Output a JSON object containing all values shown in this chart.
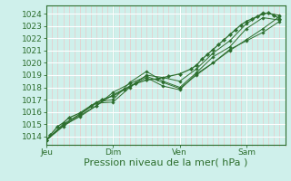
{
  "bg_color": "#cff0eb",
  "plot_bg_color": "#cff0eb",
  "grid_color": "#e8c8c8",
  "line_color": "#2d6e2d",
  "marker_color": "#2d6e2d",
  "axis_color": "#2d6e2d",
  "tick_label_color": "#2d6e2d",
  "xlabel": "Pression niveau de la mer( hPa )",
  "yticks": [
    1014,
    1015,
    1016,
    1017,
    1018,
    1019,
    1020,
    1021,
    1022,
    1023,
    1024
  ],
  "ylim": [
    1013.3,
    1024.7
  ],
  "xtick_labels": [
    "Jeu",
    "Dim",
    "Ven",
    "Sam"
  ],
  "xtick_positions": [
    0,
    72,
    144,
    216
  ],
  "xlim": [
    0,
    258
  ],
  "series1_x": [
    0,
    4,
    12,
    18,
    24,
    36,
    48,
    60,
    72,
    84,
    96,
    108,
    120,
    132,
    144,
    156,
    162,
    168,
    174,
    180,
    186,
    192,
    198,
    204,
    210,
    216,
    222,
    228,
    234,
    240,
    246,
    252
  ],
  "series1_y": [
    1013.7,
    1014.1,
    1014.8,
    1015.1,
    1015.5,
    1015.9,
    1016.5,
    1017.0,
    1017.3,
    1017.8,
    1018.3,
    1018.6,
    1018.7,
    1018.9,
    1019.1,
    1019.5,
    1019.8,
    1020.3,
    1020.7,
    1021.1,
    1021.5,
    1021.9,
    1022.3,
    1022.7,
    1023.1,
    1023.4,
    1023.6,
    1023.8,
    1024.0,
    1024.1,
    1023.9,
    1023.6
  ],
  "series2_x": [
    0,
    18,
    36,
    54,
    72,
    90,
    108,
    126,
    144,
    162,
    180,
    198,
    216,
    234,
    252
  ],
  "series2_y": [
    1013.7,
    1015.0,
    1015.8,
    1016.8,
    1017.0,
    1018.4,
    1019.3,
    1018.5,
    1018.0,
    1019.2,
    1020.5,
    1021.3,
    1022.8,
    1023.7,
    1023.5
  ],
  "series3_x": [
    0,
    18,
    36,
    54,
    72,
    90,
    108,
    126,
    144,
    162,
    180,
    198,
    216,
    234,
    252
  ],
  "series3_y": [
    1013.7,
    1014.9,
    1015.8,
    1016.7,
    1016.8,
    1018.0,
    1019.0,
    1018.8,
    1018.5,
    1019.5,
    1020.8,
    1021.8,
    1023.2,
    1024.1,
    1023.9
  ],
  "series4_x": [
    0,
    18,
    36,
    54,
    72,
    90,
    108,
    126,
    144,
    162,
    180,
    198,
    216,
    234,
    252
  ],
  "series4_y": [
    1013.7,
    1014.9,
    1015.6,
    1016.5,
    1017.4,
    1018.1,
    1018.8,
    1018.1,
    1017.8,
    1019.1,
    1020.0,
    1021.0,
    1021.9,
    1022.8,
    1023.8
  ],
  "series5_x": [
    0,
    18,
    36,
    54,
    72,
    90,
    108,
    126,
    144,
    162,
    180,
    198,
    216,
    234,
    252
  ],
  "series5_y": [
    1013.7,
    1014.8,
    1015.7,
    1016.5,
    1017.6,
    1018.3,
    1018.9,
    1018.4,
    1017.9,
    1019.0,
    1020.0,
    1021.1,
    1021.8,
    1022.5,
    1023.4
  ],
  "vline_positions": [
    72,
    144,
    216
  ],
  "minor_xtick_interval": 6,
  "xlabel_fontsize": 8,
  "tick_fontsize": 6.5
}
